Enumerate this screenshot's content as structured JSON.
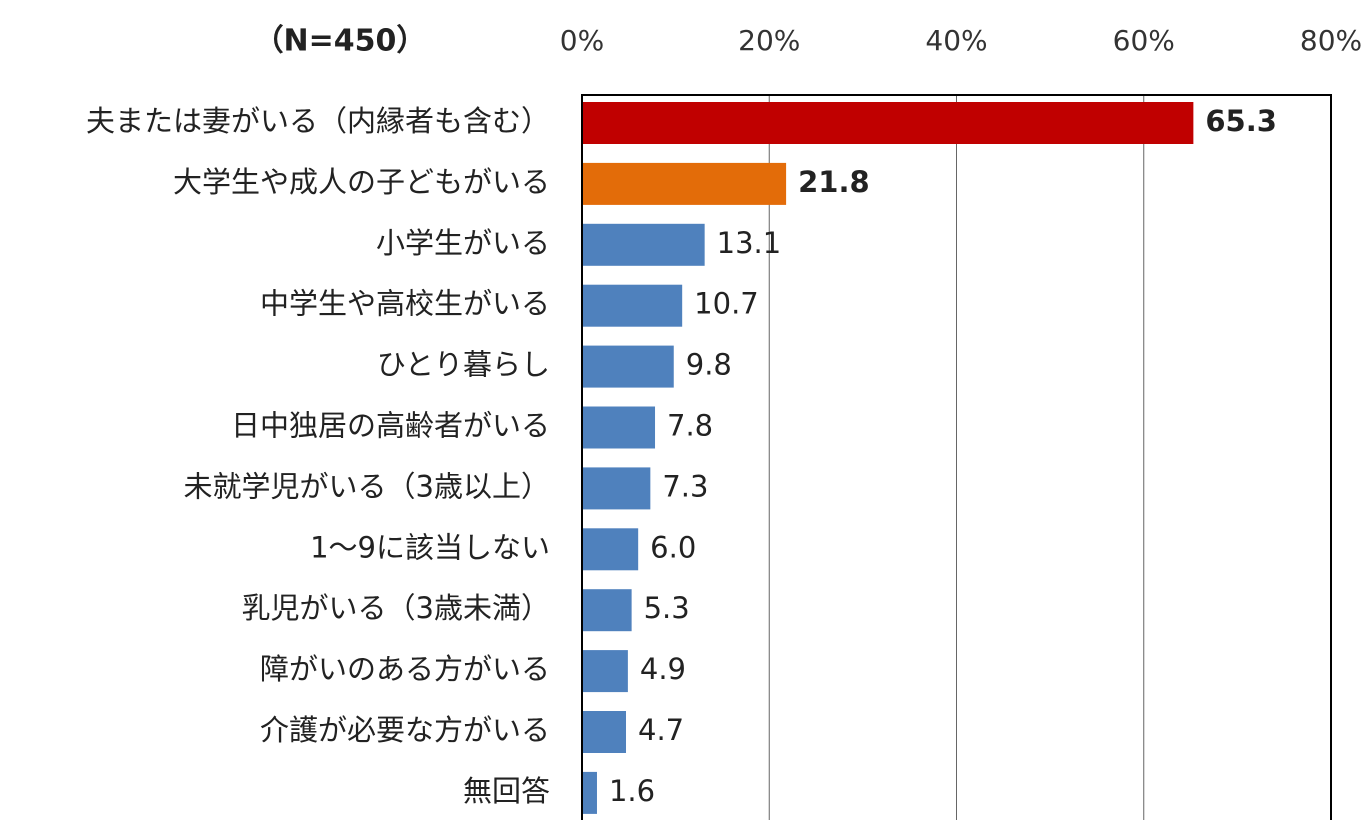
{
  "chart_data": {
    "type": "barh",
    "subtitle": "（N=450）",
    "categories": [
      "夫または妻がいる（内縁者も含む）",
      "大学生や成人の子どもがいる",
      "小学生がいる",
      "中学生や高校生がいる",
      "ひとり暮らし",
      "日中独居の高齢者がいる",
      "未就学児がいる（3歳以上）",
      "1～9に該当しない",
      "乳児がいる（3歳未満）",
      "障がいのある方がいる",
      "介護が必要な方がいる",
      "無回答"
    ],
    "values": [
      65.3,
      21.8,
      13.1,
      10.7,
      9.8,
      7.8,
      7.3,
      6.0,
      5.3,
      4.9,
      4.7,
      1.6
    ],
    "value_labels": [
      "65.3",
      "21.8",
      "13.1",
      "10.7",
      "9.8",
      "7.8",
      "7.3",
      "6.0",
      "5.3",
      "4.9",
      "4.7",
      "1.6"
    ],
    "colors": [
      "#c00000",
      "#e36c09",
      "#4f81bd",
      "#4f81bd",
      "#4f81bd",
      "#4f81bd",
      "#4f81bd",
      "#4f81bd",
      "#4f81bd",
      "#4f81bd",
      "#4f81bd",
      "#4f81bd"
    ],
    "value_label_colors": [
      "#c00000",
      "#e36c09",
      "#222222",
      "#222222",
      "#222222",
      "#222222",
      "#222222",
      "#222222",
      "#222222",
      "#222222",
      "#222222",
      "#222222"
    ],
    "value_label_bold": [
      true,
      true,
      false,
      false,
      false,
      false,
      false,
      false,
      false,
      false,
      false,
      false
    ],
    "xlim": [
      0,
      80
    ],
    "xticks": [
      {
        "value": 0,
        "label": "0%"
      },
      {
        "value": 20,
        "label": "20%"
      },
      {
        "value": 40,
        "label": "40%"
      },
      {
        "value": 60,
        "label": "60%"
      },
      {
        "value": 80,
        "label": "80%"
      }
    ],
    "grid": true
  }
}
